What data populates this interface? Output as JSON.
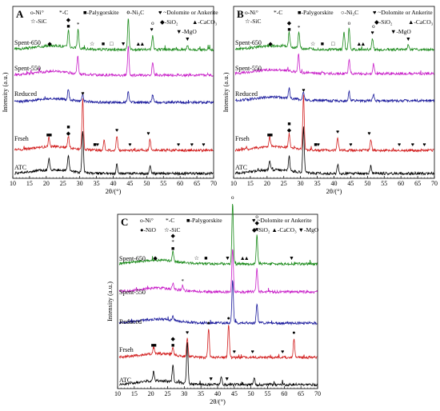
{
  "chart_data": [
    {
      "type": "line",
      "panel_label": "A",
      "xlabel": "2θ/(°)",
      "ylabel": "Intensity (a.u.)",
      "xlim": [
        10,
        70
      ],
      "xticks": [
        10,
        15,
        20,
        25,
        30,
        35,
        40,
        45,
        50,
        55,
        60,
        65,
        70
      ],
      "legend": [
        "o-Ni°",
        "*-C",
        "■-Palygorskite",
        "○-Ni₃C",
        "♥ ~Dolomite or Ankerite",
        "☆-SiC",
        "◆-SiO₂",
        "▲-CaCO₃",
        "▼-MgO"
      ],
      "series": [
        {
          "name": "Spent-650",
          "color": "#1a8a1a",
          "peaks": [
            [
              26.6,
              0.55
            ],
            [
              29.5,
              0.6
            ],
            [
              44.5,
              1.0
            ],
            [
              51.8,
              0.45
            ],
            [
              62.2,
              0.15
            ]
          ]
        },
        {
          "name": "Spent-550",
          "color": "#c81ec8",
          "peaks": [
            [
              29.4,
              0.55
            ],
            [
              44.5,
              0.9
            ],
            [
              51.8,
              0.4
            ]
          ]
        },
        {
          "name": "Reduced",
          "color": "#1a1a9c",
          "peaks": [
            [
              26.6,
              0.35
            ],
            [
              30.9,
              0.2
            ],
            [
              44.5,
              0.35
            ],
            [
              51.8,
              0.25
            ]
          ]
        },
        {
          "name": "Frseh",
          "color": "#d21e1e",
          "peaks": [
            [
              20.8,
              0.3
            ],
            [
              26.6,
              0.35
            ],
            [
              30.9,
              1.6
            ],
            [
              37.3,
              0.3
            ],
            [
              41.1,
              0.45
            ],
            [
              51.0,
              0.35
            ]
          ]
        },
        {
          "name": "ATC",
          "color": "#000000",
          "peaks": [
            [
              20.8,
              0.35
            ],
            [
              26.6,
              0.5
            ],
            [
              30.9,
              1.3
            ],
            [
              41.1,
              0.3
            ],
            [
              51.0,
              0.25
            ]
          ]
        }
      ],
      "markers": [
        {
          "symbol": "◆",
          "x": 21.0,
          "series": "Spent-650"
        },
        {
          "symbol": "■",
          "x": 26.6,
          "series": "Spent-650"
        },
        {
          "symbol": "◆",
          "x": 26.6,
          "series": "Spent-650"
        },
        {
          "symbol": "*",
          "x": 29.5,
          "series": "Spent-650"
        },
        {
          "symbol": "☆",
          "x": 33.7,
          "series": "Spent-650"
        },
        {
          "symbol": "■",
          "x": 37.0,
          "series": "Spent-650"
        },
        {
          "symbol": "□",
          "x": 39.5,
          "series": "Spent-650"
        },
        {
          "symbol": "▼",
          "x": 43.0,
          "series": "Spent-650"
        },
        {
          "symbol": "o",
          "x": 44.5,
          "series": "Spent-650"
        },
        {
          "symbol": "▲",
          "x": 47.5,
          "series": "Spent-650"
        },
        {
          "symbol": "▲",
          "x": 48.7,
          "series": "Spent-650"
        },
        {
          "symbol": "♥",
          "x": 51.5,
          "series": "Spent-650"
        },
        {
          "symbol": "o",
          "x": 51.8,
          "series": "Spent-650"
        },
        {
          "symbol": "▼",
          "x": 62.2,
          "series": "Spent-650"
        },
        {
          "symbol": "■",
          "x": 20.5,
          "series": "Frseh"
        },
        {
          "symbol": "■",
          "x": 21.2,
          "series": "Frseh"
        },
        {
          "symbol": "◆",
          "x": 26.6,
          "series": "Frseh"
        },
        {
          "symbol": "■",
          "x": 26.6,
          "series": "Frseh"
        },
        {
          "symbol": "♥",
          "x": 30.9,
          "series": "Frseh"
        },
        {
          "symbol": "■",
          "x": 34.5,
          "series": "Frseh"
        },
        {
          "symbol": "♥",
          "x": 35.3,
          "series": "Frseh"
        },
        {
          "symbol": "♥",
          "x": 41.1,
          "series": "Frseh"
        },
        {
          "symbol": "♥",
          "x": 45.0,
          "series": "Frseh"
        },
        {
          "symbol": "♥",
          "x": 50.5,
          "series": "Frseh"
        },
        {
          "symbol": "♥",
          "x": 59.5,
          "series": "Frseh"
        },
        {
          "symbol": "♥",
          "x": 63.5,
          "series": "Frseh"
        },
        {
          "symbol": "♥",
          "x": 67.0,
          "series": "Frseh"
        }
      ]
    },
    {
      "type": "line",
      "panel_label": "B",
      "xlabel": "2θ/(°)",
      "ylabel": "Intensity (a.u.)",
      "xlim": [
        10,
        70
      ],
      "xticks": [
        10,
        15,
        20,
        25,
        30,
        35,
        40,
        45,
        50,
        55,
        60,
        65,
        70
      ],
      "legend": [
        "o-Ni°",
        "*-C",
        "■-Palygorskite",
        "○-Ni₃C",
        "♥ ~Dolomite or Ankerite",
        "☆-SiC",
        "◆-SiO₂",
        "▲-CaCO₃",
        "▼-MgO"
      ],
      "series": [
        {
          "name": "Spent-650",
          "color": "#1a8a1a",
          "peaks": [
            [
              26.6,
              0.45
            ],
            [
              29.5,
              0.5
            ],
            [
              43.0,
              0.55
            ],
            [
              44.5,
              0.65
            ],
            [
              51.5,
              0.35
            ],
            [
              62.2,
              0.15
            ]
          ]
        },
        {
          "name": "Spent-550",
          "color": "#c81ec8",
          "peaks": [
            [
              29.4,
              0.55
            ],
            [
              44.5,
              0.45
            ],
            [
              51.8,
              0.3
            ]
          ]
        },
        {
          "name": "Reduced",
          "color": "#1a1a9c",
          "peaks": [
            [
              26.6,
              0.3
            ],
            [
              30.9,
              0.25
            ],
            [
              44.5,
              0.3
            ],
            [
              51.8,
              0.2
            ]
          ]
        },
        {
          "name": "Frseh",
          "color": "#d21e1e",
          "peaks": [
            [
              20.8,
              0.3
            ],
            [
              26.6,
              0.45
            ],
            [
              30.9,
              1.7
            ],
            [
              41.1,
              0.4
            ],
            [
              51.0,
              0.35
            ]
          ]
        },
        {
          "name": "ATC",
          "color": "#000000",
          "peaks": [
            [
              20.8,
              0.3
            ],
            [
              26.6,
              0.45
            ],
            [
              30.9,
              1.4
            ],
            [
              41.1,
              0.3
            ],
            [
              51.0,
              0.25
            ]
          ]
        }
      ],
      "markers": [
        {
          "symbol": "◆",
          "x": 21.0,
          "series": "Spent-650"
        },
        {
          "symbol": "■",
          "x": 26.6,
          "series": "Spent-650"
        },
        {
          "symbol": "◆",
          "x": 26.6,
          "series": "Spent-650"
        },
        {
          "symbol": "*",
          "x": 29.5,
          "series": "Spent-650"
        },
        {
          "symbol": "☆",
          "x": 33.7,
          "series": "Spent-650"
        },
        {
          "symbol": "■",
          "x": 36.5,
          "series": "Spent-650"
        },
        {
          "symbol": "□",
          "x": 39.7,
          "series": "Spent-650"
        },
        {
          "symbol": "o",
          "x": 44.5,
          "series": "Spent-650"
        },
        {
          "symbol": "▲",
          "x": 47.5,
          "series": "Spent-650"
        },
        {
          "symbol": "▲",
          "x": 48.7,
          "series": "Spent-650"
        },
        {
          "symbol": "♥",
          "x": 51.5,
          "series": "Spent-650"
        },
        {
          "symbol": "o",
          "x": 51.8,
          "series": "Spent-650"
        },
        {
          "symbol": "▼",
          "x": 62.2,
          "series": "Spent-650"
        },
        {
          "symbol": "■",
          "x": 20.5,
          "series": "Frseh"
        },
        {
          "symbol": "■",
          "x": 21.2,
          "series": "Frseh"
        },
        {
          "symbol": "◆",
          "x": 26.6,
          "series": "Frseh"
        },
        {
          "symbol": "■",
          "x": 26.6,
          "series": "Frseh"
        },
        {
          "symbol": "♥",
          "x": 30.9,
          "series": "Frseh"
        },
        {
          "symbol": "■",
          "x": 34.5,
          "series": "Frseh"
        },
        {
          "symbol": "♥",
          "x": 35.3,
          "series": "Frseh"
        },
        {
          "symbol": "♥",
          "x": 41.1,
          "series": "Frseh"
        },
        {
          "symbol": "♥",
          "x": 45.0,
          "series": "Frseh"
        },
        {
          "symbol": "♥",
          "x": 50.5,
          "series": "Frseh"
        },
        {
          "symbol": "♥",
          "x": 59.5,
          "series": "Frseh"
        },
        {
          "symbol": "♥",
          "x": 63.5,
          "series": "Frseh"
        },
        {
          "symbol": "♥",
          "x": 67.0,
          "series": "Frseh"
        }
      ]
    },
    {
      "type": "line",
      "panel_label": "C",
      "xlabel": "2θ/(°)",
      "ylabel": "Intensity (a.u.)",
      "xlim": [
        10,
        70
      ],
      "xticks": [
        10,
        15,
        20,
        25,
        30,
        35,
        40,
        45,
        50,
        55,
        60,
        65,
        70
      ],
      "legend": [
        "o-Ni°",
        "*-C",
        "■-Palygorskite",
        "♥ ~Dolomite or Ankerite",
        "●-NiO",
        "☆-SiC",
        "◆-SiO₂",
        "▲-CaCO₃",
        "▼-MgO"
      ],
      "series": [
        {
          "name": "Spent-650",
          "color": "#1a8a1a",
          "peaks": [
            [
              26.6,
              0.3
            ],
            [
              44.5,
              1.9
            ],
            [
              51.8,
              0.9
            ]
          ]
        },
        {
          "name": "Spent-550",
          "color": "#c81ec8",
          "peaks": [
            [
              26.6,
              0.2
            ],
            [
              29.5,
              0.15
            ],
            [
              44.5,
              1.35
            ],
            [
              51.8,
              0.75
            ]
          ]
        },
        {
          "name": "Reduced",
          "color": "#1a1a9c",
          "peaks": [
            [
              26.6,
              0.15
            ],
            [
              44.5,
              1.35
            ],
            [
              51.8,
              0.6
            ]
          ]
        },
        {
          "name": "Frseh",
          "color": "#d21e1e",
          "peaks": [
            [
              20.8,
              0.2
            ],
            [
              26.6,
              0.2
            ],
            [
              30.9,
              0.6
            ],
            [
              37.3,
              0.9
            ],
            [
              43.3,
              1.05
            ],
            [
              62.9,
              0.6
            ]
          ]
        },
        {
          "name": "ATC",
          "color": "#000000",
          "peaks": [
            [
              20.8,
              0.3
            ],
            [
              26.6,
              0.5
            ],
            [
              30.9,
              1.3
            ],
            [
              41.1,
              0.25
            ],
            [
              51.0,
              0.2
            ]
          ]
        }
      ],
      "markers": [
        {
          "symbol": "◆",
          "x": 21.3,
          "series": "Spent-650"
        },
        {
          "symbol": "■",
          "x": 26.6,
          "series": "Spent-650"
        },
        {
          "symbol": "*",
          "x": 26.6,
          "series": "Spent-650"
        },
        {
          "symbol": "◆",
          "x": 26.6,
          "series": "Spent-650"
        },
        {
          "symbol": "☆",
          "x": 33.7,
          "series": "Spent-650"
        },
        {
          "symbol": "■",
          "x": 36.5,
          "series": "Spent-650"
        },
        {
          "symbol": "▼",
          "x": 43.0,
          "series": "Spent-650"
        },
        {
          "symbol": "o",
          "x": 44.5,
          "series": "Spent-650"
        },
        {
          "symbol": "▲",
          "x": 47.5,
          "series": "Spent-650"
        },
        {
          "symbol": "▲",
          "x": 48.7,
          "series": "Spent-650"
        },
        {
          "symbol": "♥",
          "x": 51.8,
          "series": "Spent-650"
        },
        {
          "symbol": "◆",
          "x": 51.8,
          "series": "Spent-650"
        },
        {
          "symbol": "o",
          "x": 51.8,
          "series": "Spent-650"
        },
        {
          "symbol": "▼",
          "x": 62.2,
          "series": "Spent-650"
        },
        {
          "symbol": "*",
          "x": 29.5,
          "series": "Spent-550"
        },
        {
          "symbol": "■",
          "x": 20.5,
          "series": "Frseh"
        },
        {
          "symbol": "■",
          "x": 21.2,
          "series": "Frseh"
        },
        {
          "symbol": "■",
          "x": 26.6,
          "series": "Frseh"
        },
        {
          "symbol": "◆",
          "x": 26.6,
          "series": "Frseh"
        },
        {
          "symbol": "♥",
          "x": 30.9,
          "series": "Frseh"
        },
        {
          "symbol": "●",
          "x": 37.3,
          "series": "Frseh"
        },
        {
          "symbol": "●",
          "x": 43.3,
          "series": "Frseh"
        },
        {
          "symbol": "♥",
          "x": 45.0,
          "series": "Frseh"
        },
        {
          "symbol": "♥",
          "x": 50.5,
          "series": "Frseh"
        },
        {
          "symbol": "♥",
          "x": 59.5,
          "series": "Frseh"
        },
        {
          "symbol": "●",
          "x": 62.9,
          "series": "Frseh"
        },
        {
          "symbol": "▼",
          "x": 38.0,
          "series": "ATC"
        },
        {
          "symbol": "▼",
          "x": 42.8,
          "series": "ATC"
        }
      ]
    }
  ]
}
